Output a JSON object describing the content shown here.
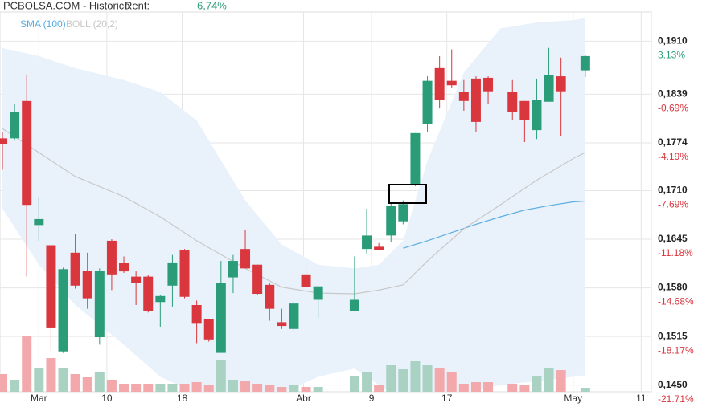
{
  "chart_data": {
    "type": "candlestick",
    "title": "PCBOLSA.COM - Historico",
    "return_label": "Rent:",
    "return_value": "6,74%",
    "up_color": "#2a9d78",
    "down_color": "#d9363e",
    "volume_up_color": "#a9d2c3",
    "volume_down_color": "#f3a9ab",
    "x": [
      0,
      1,
      2,
      3,
      4,
      5,
      6,
      7,
      8,
      9,
      10,
      11,
      12,
      13,
      14,
      15,
      16,
      17,
      18,
      19,
      20,
      21,
      22,
      23,
      24,
      25,
      26,
      29,
      30,
      31,
      32,
      33,
      34,
      35,
      36,
      37,
      38,
      39,
      40,
      42,
      43,
      44,
      45,
      46,
      48
    ],
    "open": [
      0.178,
      0.178,
      0.183,
      0.1664,
      0.1637,
      0.1495,
      0.1627,
      0.1603,
      0.1514,
      0.1643,
      0.1613,
      0.1595,
      0.1595,
      0.1561,
      0.1583,
      0.163,
      0.1557,
      0.1538,
      0.1493,
      0.1594,
      0.1632,
      0.1611,
      0.1584,
      0.1534,
      0.1525,
      0.1598,
      0.1564,
      0.1549,
      0.1632,
      0.1635,
      0.165,
      0.1669,
      0.1718,
      0.1799,
      0.1874,
      0.1857,
      0.1842,
      0.186,
      0.1861,
      0.1842,
      0.183,
      0.1791,
      0.1829,
      0.1863,
      0.1871
    ],
    "high": [
      0.1788,
      0.1826,
      0.1865,
      0.1702,
      0.1637,
      0.1607,
      0.1652,
      0.1627,
      0.1606,
      0.1645,
      0.1622,
      0.1602,
      0.1597,
      0.1571,
      0.1624,
      0.1632,
      0.1563,
      0.1538,
      0.1616,
      0.1624,
      0.1657,
      0.1611,
      0.1587,
      0.1552,
      0.1562,
      0.1607,
      0.1582,
      0.1622,
      0.1686,
      0.164,
      0.1694,
      0.1697,
      0.1787,
      0.1863,
      0.189,
      0.1899,
      0.1858,
      0.1863,
      0.1863,
      0.1858,
      0.183,
      0.186,
      0.1901,
      0.1888,
      0.1892
    ],
    "low": [
      0.1738,
      0.1777,
      0.1595,
      0.1643,
      0.1496,
      0.1493,
      0.1579,
      0.1552,
      0.1504,
      0.1577,
      0.16,
      0.1557,
      0.1547,
      0.1528,
      0.1555,
      0.1566,
      0.1506,
      0.1508,
      0.1493,
      0.1573,
      0.1606,
      0.157,
      0.1536,
      0.1525,
      0.1521,
      0.1579,
      0.154,
      0.1549,
      0.1626,
      0.163,
      0.1641,
      0.1665,
      0.1716,
      0.1788,
      0.182,
      0.1847,
      0.1817,
      0.1788,
      0.1826,
      0.1804,
      0.1775,
      0.1779,
      0.1829,
      0.1783,
      0.1862
    ],
    "close": [
      0.1772,
      0.1815,
      0.1691,
      0.1672,
      0.1527,
      0.1605,
      0.1583,
      0.1566,
      0.1603,
      0.1598,
      0.1602,
      0.1587,
      0.1549,
      0.1569,
      0.1614,
      0.1568,
      0.1533,
      0.1511,
      0.1587,
      0.1616,
      0.1606,
      0.1572,
      0.1552,
      0.1529,
      0.1559,
      0.1581,
      0.1582,
      0.1564,
      0.165,
      0.1631,
      0.169,
      0.1692,
      0.1787,
      0.1857,
      0.1831,
      0.1851,
      0.183,
      0.1802,
      0.1843,
      0.1815,
      0.1804,
      0.1831,
      0.1865,
      0.1843,
      0.189
    ],
    "volume": [
      22,
      15,
      70,
      30,
      42,
      30,
      22,
      18,
      25,
      15,
      10,
      10,
      10,
      10,
      10,
      10,
      12,
      8,
      40,
      15,
      13,
      10,
      8,
      6,
      8,
      6,
      6,
      20,
      25,
      8,
      33,
      28,
      38,
      33,
      30,
      25,
      10,
      12,
      12,
      10,
      8,
      20,
      30,
      27,
      5
    ],
    "volume_lim": [
      0,
      100
    ],
    "lines": [
      {
        "name": "SMA (100)",
        "color": "#5aaee0",
        "x": [
          33,
          35,
          37,
          39,
          41,
          43,
          45,
          47,
          48
        ],
        "values": [
          0.1633,
          0.1643,
          0.1654,
          0.1665,
          0.1675,
          0.1684,
          0.169,
          0.1695,
          0.1696
        ]
      },
      {
        "name": "BOLL (20,2)",
        "color": "#c8c8c8",
        "band_color": "#e9f2fb",
        "x": [
          0,
          3,
          6,
          10,
          13,
          16,
          20,
          23,
          26,
          29,
          31,
          33,
          35,
          38,
          41,
          44,
          47,
          48
        ],
        "values": [
          0.1793,
          0.1761,
          0.1729,
          0.1702,
          0.1675,
          0.1643,
          0.1606,
          0.1581,
          0.1573,
          0.1572,
          0.1577,
          0.1584,
          0.1616,
          0.1659,
          0.1691,
          0.1724,
          0.1753,
          0.1761
        ],
        "upper": [
          0.1901,
          0.189,
          0.1874,
          0.1858,
          0.1842,
          0.1804,
          0.1697,
          0.1638,
          0.1611,
          0.1606,
          0.1611,
          0.1643,
          0.175,
          0.1868,
          0.1927,
          0.1935,
          0.1938,
          0.1941
        ],
        "lower": [
          0.1686,
          0.1611,
          0.1557,
          0.1504,
          0.1461,
          0.1439,
          0.1429,
          0.1439,
          0.1461,
          0.1472,
          0.145,
          0.1429,
          0.1429,
          0.1439,
          0.145,
          0.1455,
          0.1461,
          0.1463
        ]
      }
    ],
    "xlim": [
      -0.2,
      53.44
    ],
    "xticks": [
      {
        "value": 3,
        "label": "Mar"
      },
      {
        "value": 8.6,
        "label": "10"
      },
      {
        "value": 14.8,
        "label": "18"
      },
      {
        "value": 24.8,
        "label": "Abr"
      },
      {
        "value": 30.4,
        "label": "9"
      },
      {
        "value": 36.6,
        "label": "17"
      },
      {
        "value": 47,
        "label": "May"
      },
      {
        "value": 52.6,
        "label": "11"
      }
    ],
    "ylim": [
      0.1441,
      0.1949
    ],
    "yticks": [
      {
        "value": 0.191,
        "label": "0,1910"
      },
      {
        "value": 0.1839,
        "label": "0,1839"
      },
      {
        "value": 0.1774,
        "label": "0,1774"
      },
      {
        "value": 0.171,
        "label": "0,1710"
      },
      {
        "value": 0.1645,
        "label": "0,1645"
      },
      {
        "value": 0.158,
        "label": "0,1580"
      },
      {
        "value": 0.1515,
        "label": "0,1515"
      },
      {
        "value": 0.145,
        "label": "0,1450"
      }
    ],
    "ytick_changes": [
      "3.13%",
      "-0.69%",
      "-4.19%",
      "-7.69%",
      "-11.18%",
      "-14.68%",
      "-18.17%",
      "-21.71%"
    ],
    "grid": true
  }
}
